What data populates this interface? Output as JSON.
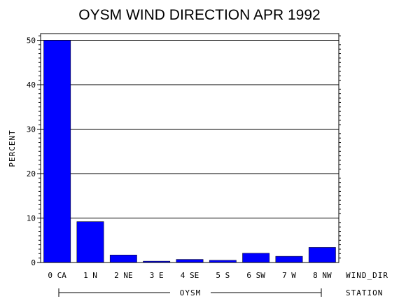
{
  "chart_data": {
    "type": "bar",
    "title": "OYSM WIND DIRECTION APR 1992",
    "ylabel": "PERCENT",
    "xlabel": "WIND_DIR",
    "group_axis_label": "STATION",
    "group_label": "OYSM",
    "categories": [
      "0 CA",
      "1 N",
      "2 NE",
      "3 E",
      "4 SE",
      "5 S",
      "6 SW",
      "7 W",
      "8 NW"
    ],
    "values": [
      50.0,
      9.2,
      1.7,
      0.3,
      0.7,
      0.5,
      2.1,
      1.4,
      3.4
    ],
    "ylim": [
      0,
      51.5
    ],
    "yticks": [
      0,
      10,
      20,
      30,
      40,
      50
    ],
    "grid": "horizontal",
    "bar_color": "#0000ff"
  }
}
